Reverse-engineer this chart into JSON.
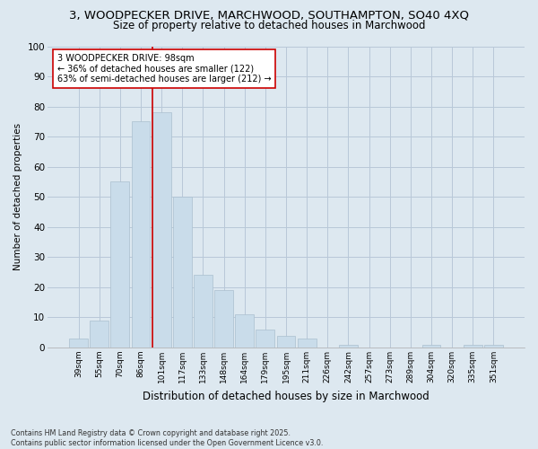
{
  "title": "3, WOODPECKER DRIVE, MARCHWOOD, SOUTHAMPTON, SO40 4XQ",
  "subtitle": "Size of property relative to detached houses in Marchwood",
  "xlabel": "Distribution of detached houses by size in Marchwood",
  "ylabel": "Number of detached properties",
  "categories": [
    "39sqm",
    "55sqm",
    "70sqm",
    "86sqm",
    "101sqm",
    "117sqm",
    "133sqm",
    "148sqm",
    "164sqm",
    "179sqm",
    "195sqm",
    "211sqm",
    "226sqm",
    "242sqm",
    "257sqm",
    "273sqm",
    "289sqm",
    "304sqm",
    "320sqm",
    "335sqm",
    "351sqm"
  ],
  "values": [
    3,
    9,
    55,
    75,
    78,
    50,
    24,
    19,
    11,
    6,
    4,
    3,
    0,
    1,
    0,
    0,
    0,
    1,
    0,
    1,
    1
  ],
  "bar_color": "#c9dcea",
  "bar_edge_color": "#aabfcf",
  "vline_color": "#cc0000",
  "annotation_text": "3 WOODPECKER DRIVE: 98sqm\n← 36% of detached houses are smaller (122)\n63% of semi-detached houses are larger (212) →",
  "annotation_box_color": "#ffffff",
  "annotation_box_edge": "#cc0000",
  "ylim": [
    0,
    100
  ],
  "yticks": [
    0,
    10,
    20,
    30,
    40,
    50,
    60,
    70,
    80,
    90,
    100
  ],
  "plot_bg_color": "#dde8f0",
  "fig_bg_color": "#dde8f0",
  "footer": "Contains HM Land Registry data © Crown copyright and database right 2025.\nContains public sector information licensed under the Open Government Licence v3.0.",
  "title_fontsize": 9.5,
  "subtitle_fontsize": 8.5
}
